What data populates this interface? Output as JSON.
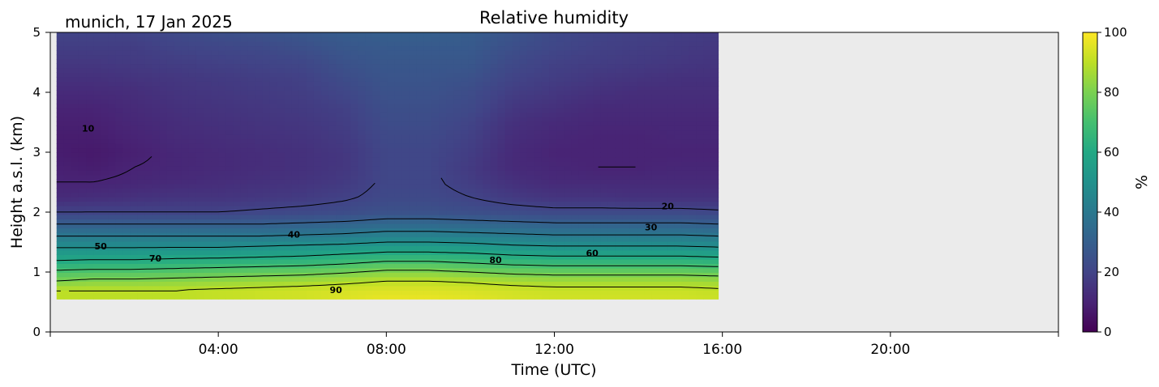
{
  "chart_data": {
    "type": "heatmap",
    "title": "Relative humidity",
    "subtitle": "munich, 17 Jan 2025",
    "xlabel": "Time (UTC)",
    "ylabel": "Height a.s.l. (km)",
    "xlim": [
      0,
      24
    ],
    "ylim": [
      0,
      5
    ],
    "x_ticks": [
      {
        "value": 4,
        "label": "04:00"
      },
      {
        "value": 8,
        "label": "08:00"
      },
      {
        "value": 12,
        "label": "12:00"
      },
      {
        "value": 16,
        "label": "16:00"
      },
      {
        "value": 20,
        "label": "20:00"
      }
    ],
    "y_ticks": [
      0,
      1,
      2,
      3,
      4,
      5
    ],
    "data_extent": {
      "x": [
        0.15,
        15.9
      ],
      "y": [
        0.55,
        5.0
      ]
    },
    "missing_color": "#ebebeb",
    "colormap": "viridis",
    "colorbar": {
      "label": "%",
      "range": [
        0,
        100
      ],
      "ticks": [
        0,
        20,
        40,
        60,
        80,
        100
      ]
    },
    "heights_km": [
      0.55,
      0.7,
      0.85,
      1.0,
      1.15,
      1.3,
      1.45,
      1.6,
      1.8,
      2.0,
      2.25,
      2.5,
      2.75,
      3.0,
      3.25,
      3.5,
      3.75,
      4.0,
      4.25,
      4.5,
      4.75,
      5.0
    ],
    "times_h": [
      0.15,
      1,
      2,
      3,
      4,
      5,
      6,
      7,
      8,
      9,
      10,
      11,
      12,
      13,
      14,
      15,
      15.9
    ],
    "rh_profiles": [
      [
        90,
        90,
        80,
        72,
        62,
        55,
        48,
        40,
        30,
        20,
        12,
        10,
        9,
        8,
        8,
        9,
        10,
        12,
        14,
        16,
        18,
        20
      ],
      [
        90,
        90,
        82,
        73,
        63,
        55,
        48,
        40,
        30,
        20,
        13,
        10,
        8,
        7,
        8,
        9,
        10,
        12,
        14,
        16,
        18,
        20
      ],
      [
        90,
        90,
        82,
        73,
        63,
        55,
        48,
        40,
        30,
        20,
        14,
        11,
        10,
        9,
        10,
        11,
        12,
        13,
        15,
        17,
        18,
        20
      ],
      [
        90,
        90,
        83,
        74,
        64,
        56,
        48,
        40,
        30,
        20,
        15,
        12,
        11,
        11,
        12,
        13,
        14,
        15,
        16,
        18,
        20,
        22
      ],
      [
        91,
        91,
        84,
        75,
        65,
        56,
        48,
        40,
        30,
        20,
        15,
        13,
        12,
        12,
        13,
        14,
        15,
        16,
        17,
        19,
        21,
        24
      ],
      [
        92,
        92,
        85,
        76,
        66,
        57,
        49,
        40,
        30,
        21,
        16,
        14,
        13,
        13,
        14,
        15,
        16,
        17,
        18,
        20,
        22,
        25
      ],
      [
        93,
        93,
        86,
        77,
        67,
        58,
        50,
        41,
        31,
        22,
        17,
        15,
        14,
        14,
        15,
        16,
        17,
        18,
        19,
        21,
        24,
        27
      ],
      [
        95,
        94,
        88,
        79,
        69,
        60,
        51,
        42,
        32,
        23,
        19,
        17,
        16,
        16,
        17,
        18,
        19,
        21,
        23,
        25,
        27,
        29
      ],
      [
        97,
        95,
        90,
        82,
        72,
        62,
        53,
        44,
        34,
        25,
        22,
        21,
        21,
        21,
        22,
        23,
        24,
        25,
        26,
        27,
        28,
        30
      ],
      [
        97,
        95,
        90,
        82,
        72,
        62,
        53,
        44,
        34,
        25,
        22,
        21,
        21,
        21,
        22,
        23,
        24,
        25,
        26,
        27,
        28,
        30
      ],
      [
        96,
        94,
        89,
        80,
        70,
        61,
        52,
        43,
        33,
        24,
        20,
        18,
        17,
        18,
        19,
        20,
        22,
        23,
        25,
        27,
        28,
        29
      ],
      [
        94,
        93,
        87,
        78,
        68,
        59,
        50,
        42,
        32,
        23,
        17,
        14,
        12,
        12,
        13,
        14,
        16,
        18,
        20,
        22,
        24,
        26
      ],
      [
        93,
        92,
        86,
        77,
        67,
        58,
        49,
        41,
        31,
        22,
        15,
        12,
        11,
        10,
        11,
        12,
        14,
        16,
        18,
        19,
        21,
        22
      ],
      [
        93,
        92,
        86,
        77,
        67,
        58,
        49,
        41,
        31,
        22,
        15,
        12,
        10,
        10,
        10,
        11,
        12,
        14,
        16,
        18,
        19,
        20
      ],
      [
        93,
        92,
        86,
        77,
        67,
        58,
        49,
        41,
        31,
        22,
        14,
        12,
        10,
        10,
        10,
        11,
        12,
        13,
        15,
        17,
        18,
        19
      ],
      [
        93,
        92,
        86,
        77,
        67,
        58,
        49,
        41,
        31,
        22,
        14,
        12,
        11,
        10,
        11,
        11,
        12,
        13,
        14,
        16,
        17,
        18
      ],
      [
        92,
        91,
        85,
        76,
        66,
        57,
        48,
        40,
        30,
        21,
        14,
        12,
        11,
        10,
        11,
        11,
        12,
        13,
        14,
        15,
        16,
        17
      ]
    ],
    "contour_levels": [
      10,
      20,
      30,
      40,
      50,
      60,
      70,
      80,
      90
    ],
    "contour_labels": [
      {
        "text": "10",
        "x": 0.9,
        "y": 3.4
      },
      {
        "text": "20",
        "x": 14.7,
        "y": 2.1
      },
      {
        "text": "30",
        "x": 14.3,
        "y": 1.75
      },
      {
        "text": "40",
        "x": 5.8,
        "y": 1.63
      },
      {
        "text": "50",
        "x": 1.2,
        "y": 1.43
      },
      {
        "text": "60",
        "x": 12.9,
        "y": 1.32
      },
      {
        "text": "70",
        "x": 2.5,
        "y": 1.23
      },
      {
        "text": "80",
        "x": 10.6,
        "y": 1.2
      },
      {
        "text": "90",
        "x": 6.8,
        "y": 0.7
      }
    ]
  }
}
